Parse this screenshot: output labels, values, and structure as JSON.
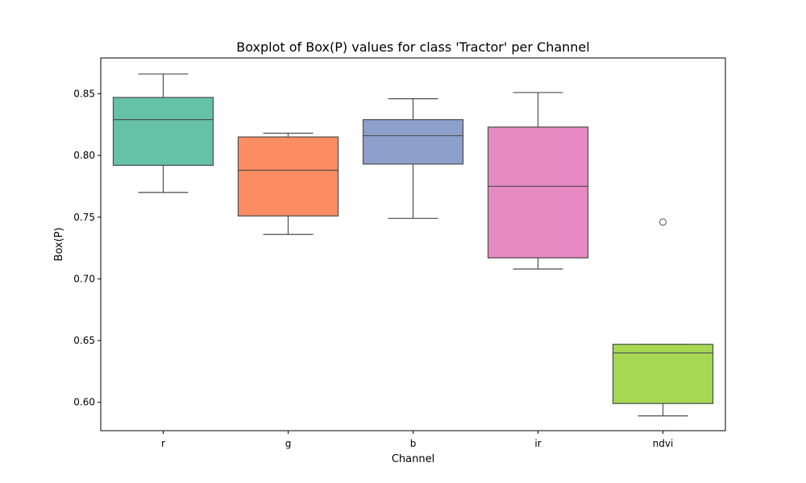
{
  "chart_data": {
    "type": "box",
    "title": "Boxplot of Box(P) values for class 'Tractor' per Channel",
    "xlabel": "Channel",
    "ylabel": "Box(P)",
    "categories": [
      "r",
      "g",
      "b",
      "ir",
      "ndvi"
    ],
    "ylim": [
      0.577,
      0.879
    ],
    "yticks": [
      0.6,
      0.65,
      0.7,
      0.75,
      0.8,
      0.85
    ],
    "ytick_labels": [
      "0.60",
      "0.65",
      "0.70",
      "0.75",
      "0.80",
      "0.85"
    ],
    "grid": false,
    "legend": "none",
    "boxes": [
      {
        "category": "r",
        "whisker_low": 0.77,
        "q1": 0.792,
        "median": 0.829,
        "q3": 0.847,
        "whisker_high": 0.866,
        "outliers": [],
        "color": "#66c2a5"
      },
      {
        "category": "g",
        "whisker_low": 0.736,
        "q1": 0.751,
        "median": 0.788,
        "q3": 0.815,
        "whisker_high": 0.818,
        "outliers": [],
        "color": "#fc8d62"
      },
      {
        "category": "b",
        "whisker_low": 0.749,
        "q1": 0.793,
        "median": 0.816,
        "q3": 0.829,
        "whisker_high": 0.846,
        "outliers": [],
        "color": "#8da0cb"
      },
      {
        "category": "ir",
        "whisker_low": 0.708,
        "q1": 0.717,
        "median": 0.775,
        "q3": 0.823,
        "whisker_high": 0.851,
        "outliers": [],
        "color": "#e78ac3"
      },
      {
        "category": "ndvi",
        "whisker_low": 0.589,
        "q1": 0.599,
        "median": 0.64,
        "q3": 0.647,
        "whisker_high": 0.647,
        "outliers": [
          0.746
        ],
        "color": "#a6d854"
      }
    ]
  }
}
